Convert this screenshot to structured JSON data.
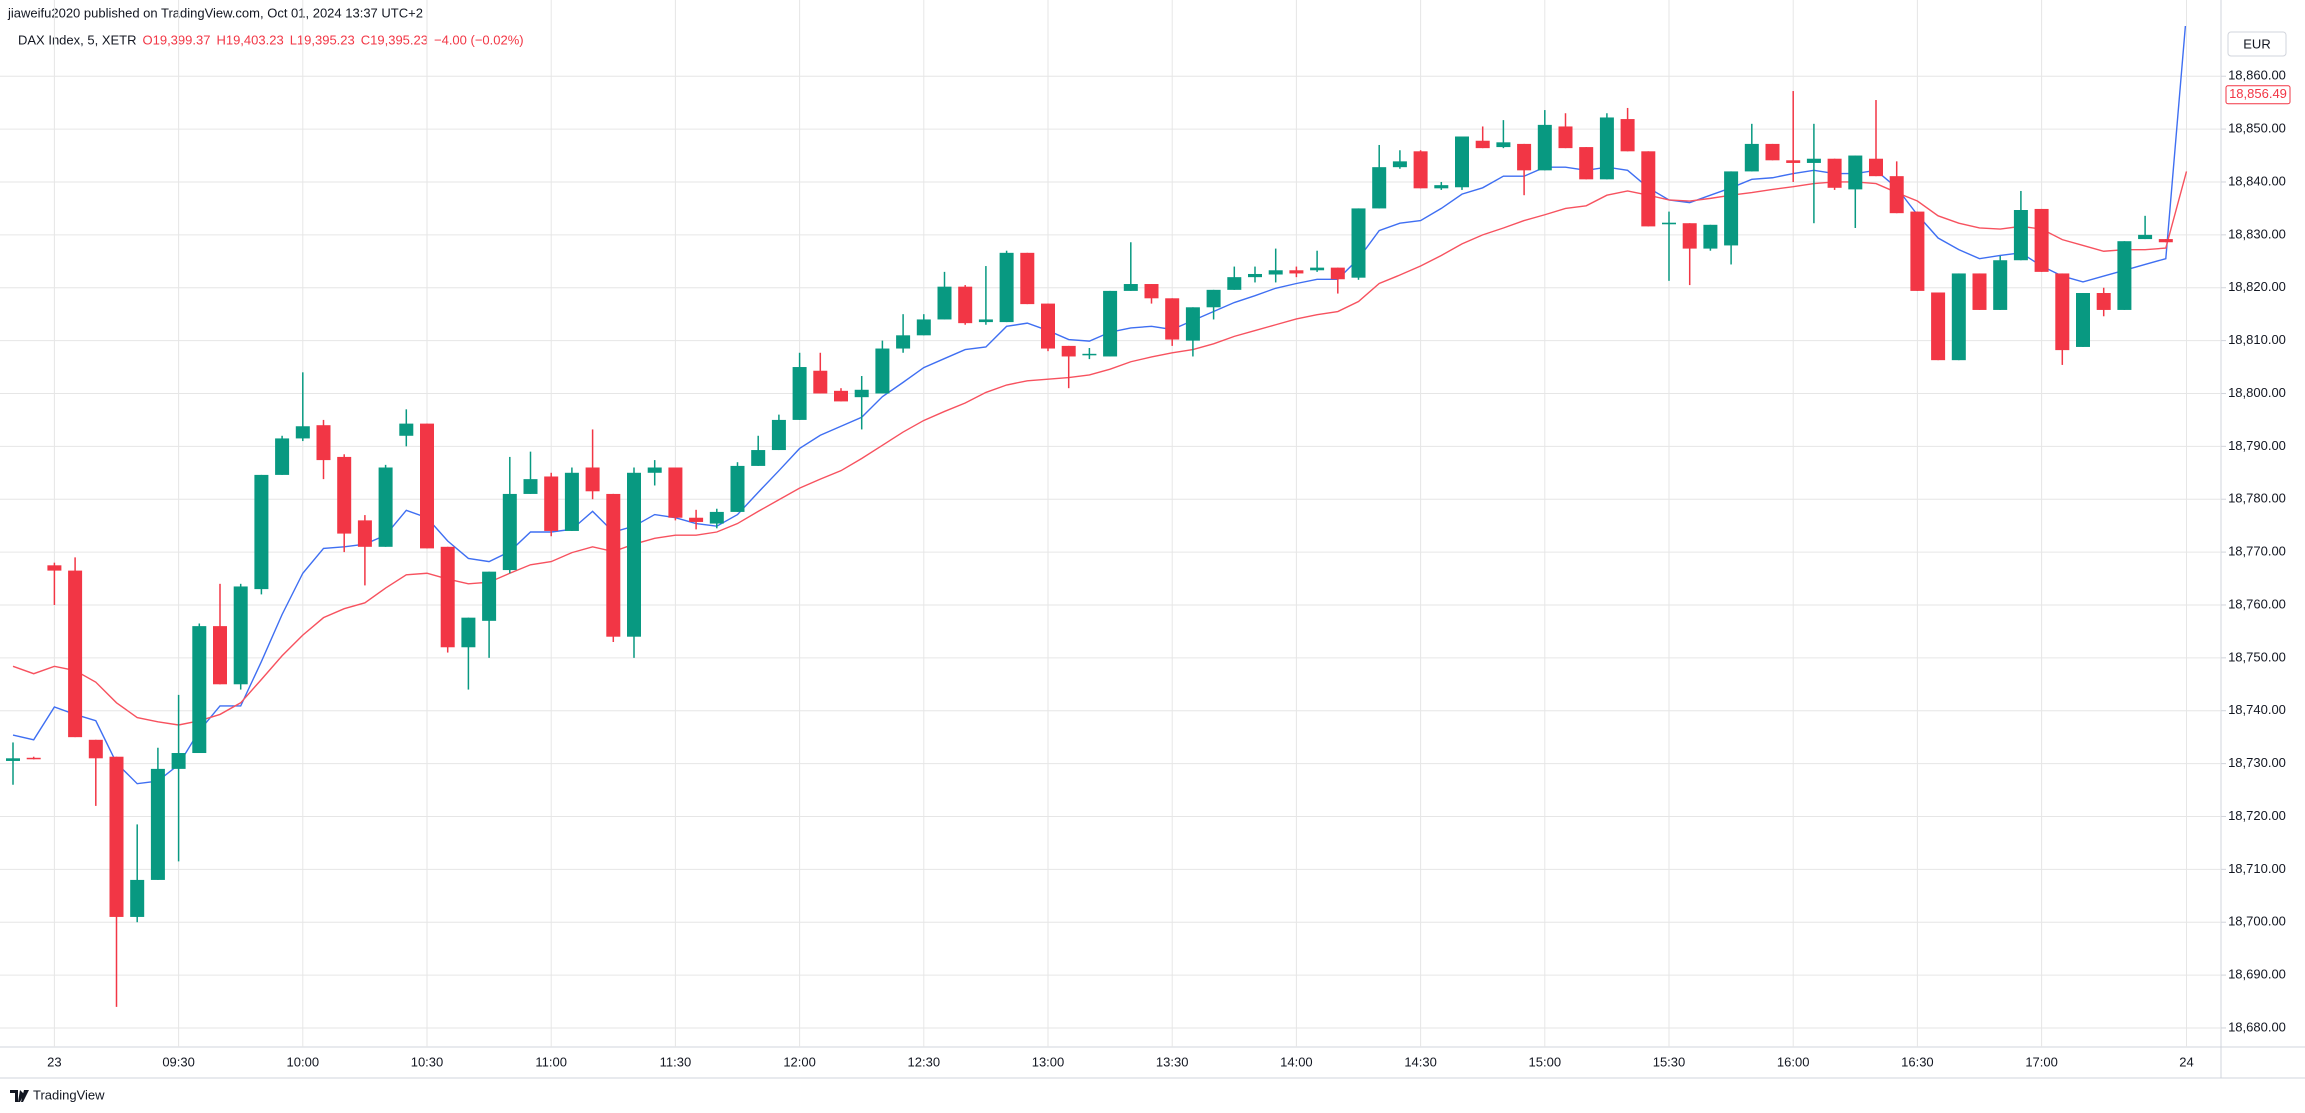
{
  "header": {
    "publisher": "jiaweifu2020 published on TradingView.com, Oct 01, 2024 13:37 UTC+2"
  },
  "chart_data": {
    "type": "candlestick",
    "symbol": "DAX Index, 5, XETR",
    "ohlc_legend": [
      "O19,399.37",
      "H19,403.23",
      "L19,395.23",
      "C19,395.23",
      "−4.00 (−0.02%)"
    ],
    "currency": "EUR",
    "categories": [
      null,
      null,
      "23",
      null,
      null,
      null,
      null,
      null,
      "09:30",
      null,
      null,
      null,
      null,
      null,
      "10:00",
      null,
      null,
      null,
      null,
      null,
      "10:30",
      null,
      null,
      null,
      null,
      null,
      "11:00",
      null,
      null,
      null,
      null,
      null,
      "11:30",
      null,
      null,
      null,
      null,
      null,
      "12:00",
      null,
      null,
      null,
      null,
      null,
      "12:30",
      null,
      null,
      null,
      null,
      null,
      "13:00",
      null,
      null,
      null,
      null,
      null,
      "13:30",
      null,
      null,
      null,
      null,
      null,
      "14:00",
      null,
      null,
      null,
      null,
      null,
      "14:30",
      null,
      null,
      null,
      null,
      null,
      "15:00",
      null,
      null,
      null,
      null,
      null,
      "15:30",
      null,
      null,
      null,
      null,
      null,
      "16:00",
      null,
      null,
      null,
      null,
      null,
      "16:30",
      null,
      null,
      null,
      null,
      null,
      "17:00",
      null,
      null,
      null,
      null,
      null,
      null,
      "24"
    ],
    "open": [
      18730.5,
      18731.1,
      18767.5,
      18766.5,
      18734.5,
      18731.3,
      18701,
      18708,
      18729,
      18732,
      18756,
      18745,
      18763,
      18784.6,
      18791.5,
      18794,
      18788,
      18776,
      18771,
      18792,
      18794.3,
      18771,
      18752,
      18757,
      18766.6,
      18781,
      18784.3,
      18774,
      18786,
      18781,
      18754,
      18785,
      18786,
      18776.5,
      18775.4,
      18777.6,
      18786.3,
      18789.3,
      18795,
      18804.3,
      18800.5,
      18799.3,
      18800,
      18808.5,
      18811,
      18814,
      18820.2,
      18813.5,
      18813.5,
      18826.6,
      18817,
      18809,
      18807.3,
      18807,
      18819.4,
      18820.7,
      18818,
      18810,
      18816.3,
      18819.6,
      18822,
      18822.5,
      18823.3,
      18823.3,
      18823.8,
      18821.9,
      18835,
      18842.8,
      18845.8,
      18838.8,
      18839,
      18847.8,
      18846.6,
      18847.2,
      18842.2,
      18850.5,
      18846.6,
      18840.5,
      18851.9,
      18845.8,
      18832,
      18832.2,
      18827.4,
      18828,
      18842,
      18847.2,
      18844.1,
      18843.6,
      18844.4,
      18838.6,
      18844.4,
      18841.1,
      18834.4,
      18819.1,
      18806.3,
      18822.7,
      18815.8,
      18825.2,
      18834.9,
      18822.7,
      18808.8,
      18819,
      18815.8,
      18829.2,
      18829.2,
      null
    ],
    "high": [
      18734,
      18731.3,
      18768,
      18769,
      18734.5,
      18731.3,
      18718.5,
      18733,
      18743,
      18756.5,
      18764,
      18764,
      18784.6,
      18792,
      18804,
      18795,
      18788.5,
      18777,
      18786.5,
      18797,
      18794.3,
      18771,
      18757.6,
      18766.3,
      18788,
      18789,
      18785,
      18786,
      18793.2,
      18781,
      18786,
      18787.4,
      18786,
      18778,
      18778.2,
      18787,
      18792,
      18796,
      18807.7,
      18807.7,
      18801,
      18803.3,
      18810,
      18815,
      18815,
      18823,
      18820.5,
      18824.1,
      18827,
      18826.6,
      18817,
      18809,
      18808.6,
      18819.4,
      18828.6,
      18820.7,
      18818,
      18816.3,
      18819.6,
      18824,
      18824,
      18827.4,
      18824,
      18827,
      18823.8,
      18835,
      18847,
      18846,
      18846,
      18840,
      18848.6,
      18850.5,
      18851.7,
      18847.2,
      18853.6,
      18853,
      18846.6,
      18853,
      18854,
      18845.8,
      18834.4,
      18832.2,
      18831.9,
      18842,
      18851,
      18847.2,
      18857.2,
      18851,
      18844.4,
      18845,
      18855.5,
      18843.9,
      18834.4,
      18819.1,
      18822.7,
      18822.7,
      18826,
      18838.3,
      18834.9,
      18822.7,
      18819,
      18820,
      18828.8,
      18833.6,
      18829.2,
      null
    ],
    "low": [
      18726,
      18730.8,
      18760,
      18735,
      18722,
      18684,
      18700,
      18708,
      18711.5,
      18732,
      18745,
      18744,
      18762,
      18784.6,
      18791,
      18783.8,
      18770,
      18763.7,
      18771,
      18790,
      18770.7,
      18751,
      18744,
      18750,
      18766,
      18781,
      18773,
      18774,
      18780,
      18753,
      18750,
      18782.6,
      18776,
      18774.3,
      18774.5,
      18777.6,
      18786.3,
      18789.3,
      18795,
      18800,
      18798.5,
      18793.2,
      18800,
      18807.7,
      18811,
      18814,
      18813,
      18813,
      18813.5,
      18816.9,
      18808,
      18801,
      18806.5,
      18807,
      18819.4,
      18817,
      18809,
      18807,
      18814,
      18819.6,
      18821,
      18821,
      18822,
      18823,
      18818.9,
      18821.5,
      18835,
      18842.5,
      18838.8,
      18838.5,
      18838.5,
      18846.4,
      18846.4,
      18837.5,
      18842.2,
      18846.4,
      18840.5,
      18840.5,
      18845.8,
      18831.6,
      18821.3,
      18820.5,
      18827,
      18824.4,
      18842,
      18844.1,
      18840,
      18832.2,
      18838.5,
      18831.3,
      18841.1,
      18834.1,
      18819.4,
      18806.3,
      18806.3,
      18815.8,
      18815.8,
      18825.2,
      18823,
      18805.4,
      18808.8,
      18814.6,
      18815.8,
      18829.2,
      18828.6,
      null
    ],
    "close": [
      18731,
      18731,
      18766.5,
      18735,
      18731,
      18701,
      18708,
      18729,
      18732,
      18756,
      18745,
      18763.5,
      18784.6,
      18791.5,
      18793.8,
      18787.4,
      18773.5,
      18771,
      18786,
      18794.3,
      18770.7,
      18752,
      18757.6,
      18766.3,
      18781,
      18783.8,
      18774,
      18785,
      18781.5,
      18754,
      18785,
      18786,
      18776.5,
      18775.7,
      18777.6,
      18786.3,
      18789.3,
      18795,
      18805,
      18800,
      18798.5,
      18800.7,
      18808.5,
      18811,
      18814,
      18820.2,
      18813.3,
      18814,
      18826.6,
      18816.9,
      18808.5,
      18807,
      18807.5,
      18819.4,
      18820.7,
      18818,
      18810.2,
      18816.3,
      18819.6,
      18822,
      18822.6,
      18823.3,
      18822.7,
      18823.8,
      18821.6,
      18835,
      18842.8,
      18843.9,
      18838.8,
      18839.4,
      18848.6,
      18846.4,
      18847.5,
      18842.2,
      18850.8,
      18846.4,
      18840.5,
      18852.2,
      18845.8,
      18831.6,
      18832.3,
      18827.4,
      18831.9,
      18842,
      18847.2,
      18844.1,
      18843.6,
      18844.4,
      18838.9,
      18845,
      18841.1,
      18834.1,
      18819.4,
      18806.3,
      18822.7,
      18815.8,
      18825.2,
      18834.7,
      18823,
      18808.2,
      18819,
      18815.8,
      18828.8,
      18830,
      18828.6,
      null
    ],
    "up_color": "#089981",
    "down_color": "#f23645",
    "lines": [
      {
        "color": "#3f6ff2",
        "values": [
          18735.4,
          18734.5,
          18740.7,
          18739.3,
          18738.1,
          18730.1,
          18726.2,
          18726.7,
          18729.8,
          18736.2,
          18740.9,
          18740.9,
          18749.3,
          18758.2,
          18766,
          18770.7,
          18771,
          18771.5,
          18773.2,
          18777.9,
          18776.5,
          18772.1,
          18768.8,
          18768.2,
          18770.1,
          18773.8,
          18773.8,
          18774.3,
          18777.7,
          18773.8,
          18774.9,
          18777.1,
          18776.5,
          18775.4,
          18774.9,
          18777.1,
          18781.3,
          18785.4,
          18789.6,
          18792.1,
          18793.8,
          18795.5,
          18799.4,
          18802.1,
          18804.9,
          18806.6,
          18808.3,
          18808.8,
          18812.7,
          18813.3,
          18811.9,
          18810.2,
          18809.9,
          18811.6,
          18812.4,
          18812.7,
          18812.1,
          18813.8,
          18815.5,
          18817.2,
          18818.5,
          18819.9,
          18820.8,
          18821.6,
          18821.6,
          18825.5,
          18830.8,
          18832.2,
          18832.7,
          18835,
          18837.7,
          18838.9,
          18841.1,
          18841.1,
          18842.8,
          18842.8,
          18842.2,
          18842.8,
          18842.2,
          18838.9,
          18836.6,
          18836.1,
          18837.5,
          18838.9,
          18840.5,
          18840.8,
          18841.6,
          18842.2,
          18841.6,
          18841.6,
          18842.2,
          18838.9,
          18833.8,
          18829.4,
          18827.2,
          18825.5,
          18826.1,
          18826.6,
          18824.1,
          18822.2,
          18821.1,
          18822.2,
          18823.3,
          18824.4,
          18825.5,
          18872
        ]
      },
      {
        "color": "#f7525f",
        "values": [
          18748.4,
          18747,
          18748.4,
          18747.6,
          18745.4,
          18741.5,
          18738.7,
          18737.9,
          18737.3,
          18738.1,
          18739.3,
          18741.5,
          18745.9,
          18750.4,
          18754.3,
          18757.6,
          18759.3,
          18760.4,
          18763.2,
          18765.7,
          18766,
          18764.9,
          18764,
          18764.3,
          18766,
          18767.6,
          18768.2,
          18769.9,
          18771,
          18770.1,
          18771.5,
          18772.6,
          18773.2,
          18773.2,
          18773.8,
          18775.4,
          18777.7,
          18779.9,
          18782.1,
          18783.8,
          18785.4,
          18787.7,
          18790.2,
          18792.7,
          18794.9,
          18796.6,
          18798.2,
          18800.2,
          18801.6,
          18802.4,
          18802.7,
          18803,
          18803.5,
          18804.6,
          18806,
          18806.9,
          18807.7,
          18808.3,
          18809.4,
          18810.8,
          18811.9,
          18813,
          18814.1,
          18814.9,
          18815.5,
          18817.4,
          18820.8,
          18822.4,
          18824.1,
          18826.1,
          18828.3,
          18830,
          18831.3,
          18832.7,
          18833.8,
          18835,
          18835.5,
          18837.5,
          18838.3,
          18837.5,
          18836.6,
          18836.4,
          18836.9,
          18837.5,
          18838,
          18838.6,
          18839.1,
          18839.7,
          18840,
          18840,
          18839.7,
          18838,
          18836.4,
          18833.6,
          18832.2,
          18831.3,
          18831.1,
          18831.6,
          18831.1,
          18829.1,
          18828,
          18826.9,
          18827.2,
          18827.2,
          18827.5,
          18842
        ]
      }
    ],
    "price_label": {
      "value": 18856.49,
      "label": "18,856.49",
      "color": "#f23645"
    },
    "ylim": [
      18676.4,
      18869.5
    ],
    "yticks": [
      {
        "value": 18680,
        "label": "18,680.00"
      },
      {
        "value": 18690,
        "label": "18,690.00"
      },
      {
        "value": 18700,
        "label": "18,700.00"
      },
      {
        "value": 18710,
        "label": "18,710.00"
      },
      {
        "value": 18720,
        "label": "18,720.00"
      },
      {
        "value": 18730,
        "label": "18,730.00"
      },
      {
        "value": 18740,
        "label": "18,740.00"
      },
      {
        "value": 18750,
        "label": "18,750.00"
      },
      {
        "value": 18760,
        "label": "18,760.00"
      },
      {
        "value": 18770,
        "label": "18,770.00"
      },
      {
        "value": 18780,
        "label": "18,780.00"
      },
      {
        "value": 18790,
        "label": "18,790.00"
      },
      {
        "value": 18800,
        "label": "18,800.00"
      },
      {
        "value": 18810,
        "label": "18,810.00"
      },
      {
        "value": 18820,
        "label": "18,820.00"
      },
      {
        "value": 18830,
        "label": "18,830.00"
      },
      {
        "value": 18840,
        "label": "18,840.00"
      },
      {
        "value": 18850,
        "label": "18,850.00"
      },
      {
        "value": 18860,
        "label": "18,860.00"
      }
    ],
    "grid": true
  },
  "footer": {
    "logo": "TradingView"
  }
}
